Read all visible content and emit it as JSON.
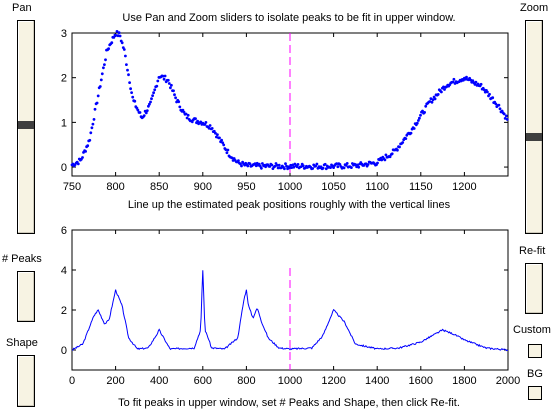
{
  "controls": {
    "pan_label": "Pan",
    "zoom_label": "Zoom",
    "peaks_label": "# Peaks",
    "shape_label": "Shape",
    "refit_label": "Re-fit",
    "custom_label": "Custom",
    "bg_label": "BG",
    "pan_value": 0.5,
    "zoom_value": 0.5
  },
  "chart_data": [
    {
      "type": "scatter",
      "title": "Use Pan and Zoom sliders to isolate peaks to be fit in upper window.",
      "xlabel": "Line up the estimated peak positions roughly with the vertical lines",
      "ylabel": "",
      "xlim": [
        750,
        1250
      ],
      "ylim": [
        -0.2,
        3
      ],
      "xticks": [
        750,
        800,
        850,
        900,
        950,
        1000,
        1050,
        1100,
        1150,
        1200
      ],
      "yticks": [
        0,
        1,
        2,
        3
      ],
      "marker_color": "#0000ff",
      "vline_x": 1000,
      "vline_color": "#ff00ff",
      "series": [
        {
          "x": [
            750,
            760,
            770,
            780,
            790,
            800,
            805,
            810,
            820,
            830,
            840,
            850,
            860,
            870,
            880,
            890,
            900,
            910,
            920,
            930,
            940,
            950,
            975,
            1000,
            1025,
            1050,
            1075,
            1100,
            1120,
            1140,
            1160,
            1180,
            1200,
            1220,
            1240,
            1250
          ],
          "y": [
            0.05,
            0.15,
            0.6,
            1.6,
            2.6,
            3.0,
            2.95,
            2.6,
            1.5,
            1.1,
            1.4,
            2.05,
            1.95,
            1.5,
            1.15,
            1.05,
            1.0,
            0.9,
            0.6,
            0.3,
            0.1,
            0.03,
            0.02,
            0.02,
            0.02,
            0.02,
            0.03,
            0.1,
            0.35,
            0.85,
            1.45,
            1.85,
            2.0,
            1.8,
            1.35,
            1.05
          ]
        }
      ]
    },
    {
      "type": "line",
      "title": "",
      "xlabel": "To fit peaks in upper window, set # Peaks and Shape, then click Re-fit.",
      "ylabel": "",
      "xlim": [
        0,
        2000
      ],
      "ylim": [
        -1,
        6
      ],
      "xticks": [
        0,
        200,
        400,
        600,
        800,
        1000,
        1200,
        1400,
        1600,
        1800,
        2000
      ],
      "yticks": [
        0,
        2,
        4,
        6
      ],
      "line_color": "#0000ff",
      "vline_x": 1000,
      "vline_color": "#ff00ff",
      "series": [
        {
          "x": [
            0,
            50,
            100,
            120,
            150,
            170,
            200,
            230,
            260,
            300,
            350,
            390,
            400,
            410,
            450,
            560,
            590,
            600,
            610,
            625,
            640,
            700,
            760,
            790,
            800,
            810,
            830,
            850,
            870,
            900,
            950,
            1000,
            1100,
            1150,
            1200,
            1250,
            1300,
            1400,
            1500,
            1600,
            1650,
            1700,
            1750,
            1800,
            1900,
            2000
          ],
          "y": [
            0,
            0.3,
            1.7,
            2.0,
            1.3,
            1.5,
            3.0,
            2.2,
            0.6,
            0.05,
            0.1,
            0.8,
            1.0,
            0.8,
            0.05,
            0.1,
            1.0,
            4.0,
            1.0,
            0.6,
            0.1,
            0.05,
            0.6,
            2.6,
            3.0,
            2.2,
            1.6,
            2.1,
            1.4,
            0.6,
            0.1,
            0.05,
            0.1,
            0.7,
            2.0,
            1.4,
            0.3,
            0.05,
            0.1,
            0.4,
            0.7,
            1.0,
            0.8,
            0.5,
            0.1,
            0.0
          ]
        }
      ]
    }
  ]
}
